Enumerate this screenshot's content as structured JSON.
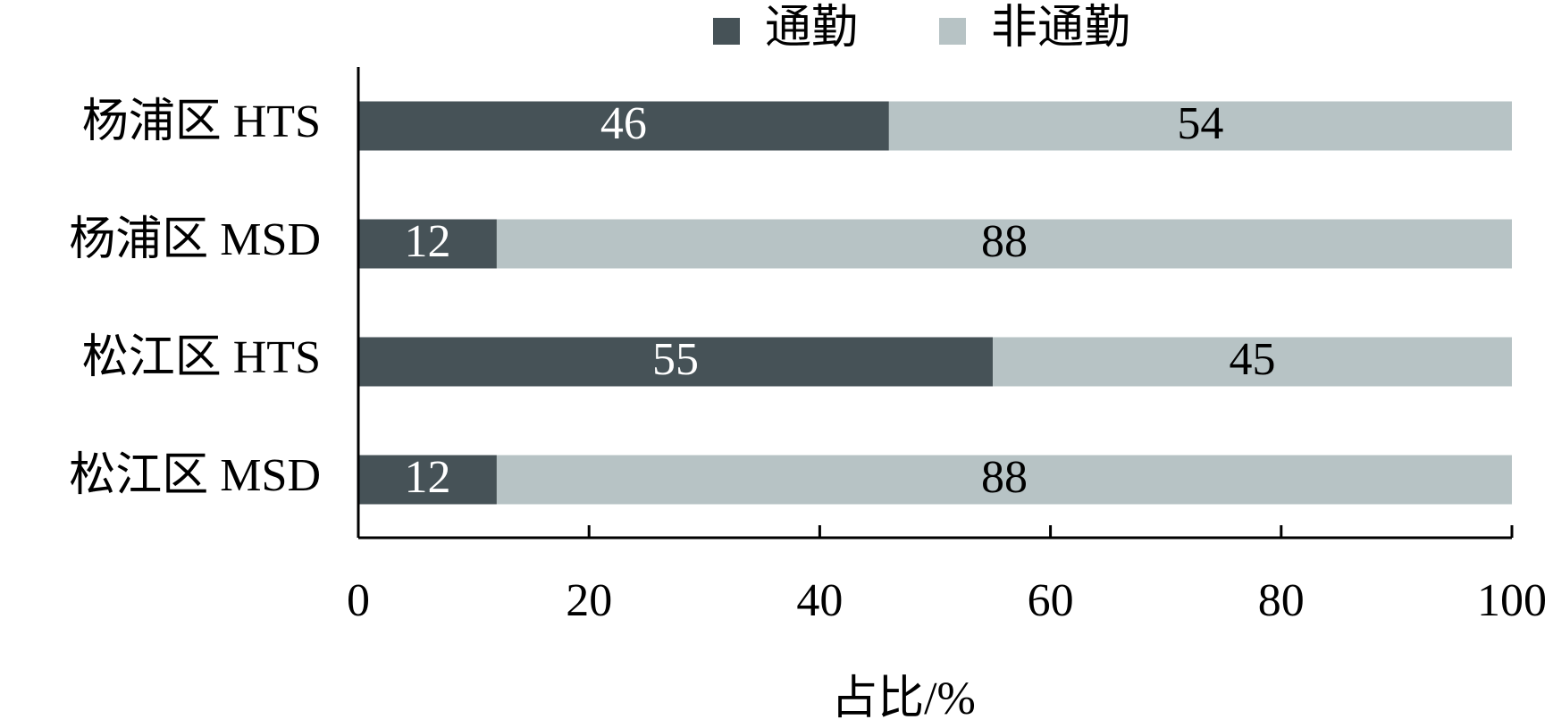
{
  "chart_data": {
    "type": "stacked-barh",
    "categories": [
      "杨浦区 HTS",
      "杨浦区 MSD",
      "松江区 HTS",
      "松江区 MSD"
    ],
    "series": [
      {
        "name": "通勤",
        "color": "#465257",
        "values": [
          46,
          12,
          55,
          12
        ]
      },
      {
        "name": "非通勤",
        "color": "#b7c3c5",
        "values": [
          54,
          88,
          45,
          88
        ]
      }
    ],
    "xlabel": "占比/%",
    "xlim": [
      0,
      100
    ],
    "xticks": [
      0,
      20,
      40,
      60,
      80,
      100
    ],
    "legend": "top"
  }
}
